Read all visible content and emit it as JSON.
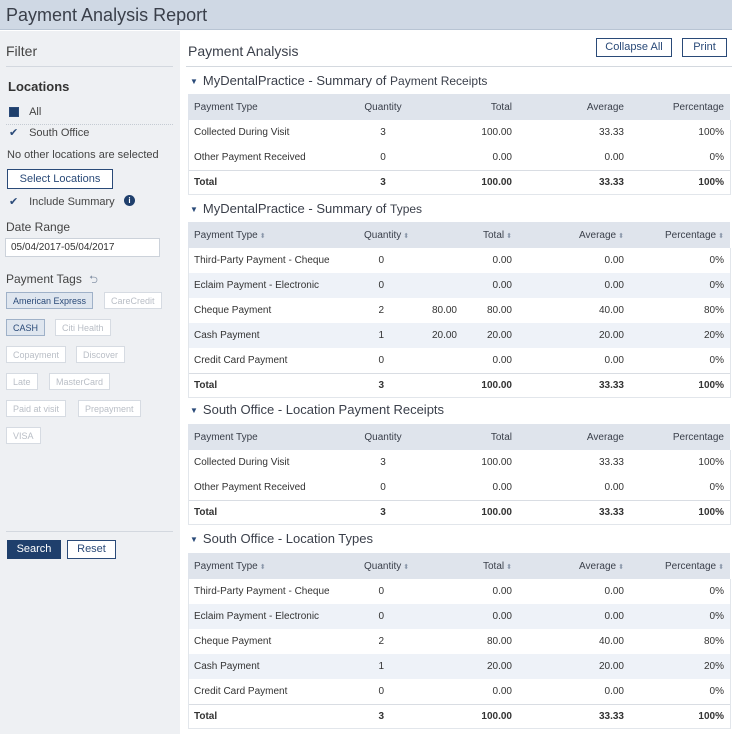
{
  "app": {
    "title": "Payment Analysis Report"
  },
  "sidebar": {
    "filter_label": "Filter",
    "locations_label": "Locations",
    "all_label": "All",
    "south_office_label": "South Office",
    "no_other_text": "No other locations are selected",
    "select_locations_btn": "Select Locations",
    "include_summary_label": "Include Summary",
    "date_range_label": "Date Range",
    "date_range_value": "05/04/2017-05/04/2017",
    "payment_tags_label": "Payment Tags",
    "tags": [
      {
        "label": "American Express",
        "selected": true
      },
      {
        "label": "CareCredit",
        "selected": false
      },
      {
        "label": "CASH",
        "selected": true
      },
      {
        "label": "Citi Health",
        "selected": false
      },
      {
        "label": "Copayment",
        "selected": false
      },
      {
        "label": "Discover",
        "selected": false
      },
      {
        "label": "Late",
        "selected": false
      },
      {
        "label": "MasterCard",
        "selected": false
      },
      {
        "label": "Paid at visit",
        "selected": false
      },
      {
        "label": "Prepayment",
        "selected": false
      },
      {
        "label": "VISA",
        "selected": false
      }
    ],
    "search_btn": "Search",
    "reset_btn": "Reset"
  },
  "main": {
    "title": "Payment Analysis",
    "collapse_btn": "Collapse All",
    "print_btn": "Print",
    "sections": [
      {
        "title_a": "MyDentalPractice - Summary of ",
        "title_b": "Payment Receipts",
        "headers": [
          "Payment Type",
          "Quantity",
          "Total",
          "Average",
          "Percentage"
        ],
        "rows": [
          [
            "Collected During Visit",
            "3",
            "",
            "100.00",
            "33.33",
            "100%"
          ],
          [
            "Other Payment Received",
            "0",
            "",
            "0.00",
            "0.00",
            "0%"
          ]
        ],
        "total": [
          "Total",
          "3",
          "",
          "100.00",
          "33.33",
          "100%"
        ]
      },
      {
        "title_a": "MyDentalPractice - Summary of ",
        "title_b": "Types",
        "headers": [
          "Payment Type",
          "Quantity",
          "Total",
          "Average",
          "Percentage"
        ],
        "rows": [
          [
            "Third-Party Payment - Cheque",
            "0",
            "",
            "0.00",
            "0.00",
            "0%"
          ],
          [
            "Eclaim Payment - Electronic",
            "0",
            "",
            "0.00",
            "0.00",
            "0%"
          ],
          [
            "Cheque Payment",
            "2",
            "80.00",
            "80.00",
            "40.00",
            "80%"
          ],
          [
            "Cash Payment",
            "1",
            "20.00",
            "20.00",
            "20.00",
            "20%"
          ],
          [
            "Credit Card Payment",
            "0",
            "",
            "0.00",
            "0.00",
            "0%"
          ]
        ],
        "total": [
          "Total",
          "3",
          "",
          "100.00",
          "33.33",
          "100%"
        ]
      },
      {
        "title_a": "South Office - Location Payment Receipts",
        "title_b": "",
        "headers": [
          "Payment Type",
          "Quantity",
          "Total",
          "Average",
          "Percentage"
        ],
        "rows": [
          [
            "Collected During Visit",
            "3",
            "",
            "100.00",
            "33.33",
            "100%"
          ],
          [
            "Other Payment Received",
            "0",
            "",
            "0.00",
            "0.00",
            "0%"
          ]
        ],
        "total": [
          "Total",
          "3",
          "",
          "100.00",
          "33.33",
          "100%"
        ]
      },
      {
        "title_a": "South Office - Location Types",
        "title_b": "",
        "headers": [
          "Payment Type",
          "Quantity",
          "Total",
          "Average",
          "Percentage"
        ],
        "rows": [
          [
            "Third-Party Payment - Cheque",
            "0",
            "",
            "0.00",
            "0.00",
            "0%"
          ],
          [
            "Eclaim Payment - Electronic",
            "0",
            "",
            "0.00",
            "0.00",
            "0%"
          ],
          [
            "Cheque Payment",
            "2",
            "",
            "80.00",
            "40.00",
            "80%"
          ],
          [
            "Cash Payment",
            "1",
            "",
            "20.00",
            "20.00",
            "20%"
          ],
          [
            "Credit Card Payment",
            "0",
            "",
            "0.00",
            "0.00",
            "0%"
          ]
        ],
        "total": [
          "Total",
          "3",
          "",
          "100.00",
          "33.33",
          "100%"
        ]
      }
    ]
  }
}
